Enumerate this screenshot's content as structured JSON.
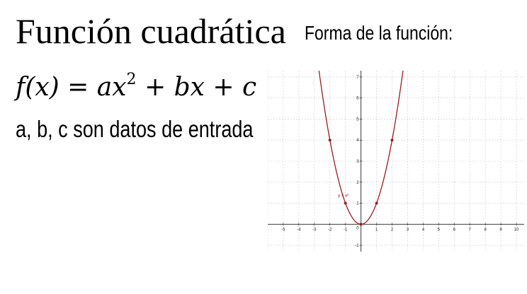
{
  "title": "Función cuadrática",
  "formula": {
    "lhs": "f(x)",
    "equals": " = ",
    "a_x": "ax",
    "exp": "2",
    "rest": " + bx + c"
  },
  "subtitle": "a, b, c son datos de entrada",
  "graph_title": "Forma de la función:",
  "colors": {
    "curve": "#9b1c1c",
    "grid": "#c9c9c9",
    "axis": "#222222"
  },
  "chart_data": {
    "type": "line",
    "function": "y = x^2",
    "curve_label": "y = x²",
    "xlim": [
      -6,
      10.5
    ],
    "ylim": [
      -1.3,
      7.3
    ],
    "x_ticks": [
      -5,
      -4,
      -3,
      -2,
      -1,
      1,
      2,
      3,
      4,
      5,
      6,
      7,
      8,
      9,
      10
    ],
    "y_ticks": [
      -1,
      1,
      2,
      3,
      4,
      5,
      6,
      7
    ],
    "origin_label": "0",
    "grid": true,
    "points": [
      {
        "x": -2,
        "y": 4
      },
      {
        "x": -1,
        "y": 1
      },
      {
        "x": 0,
        "y": 0
      },
      {
        "x": 1,
        "y": 1
      },
      {
        "x": 2,
        "y": 4
      }
    ]
  }
}
